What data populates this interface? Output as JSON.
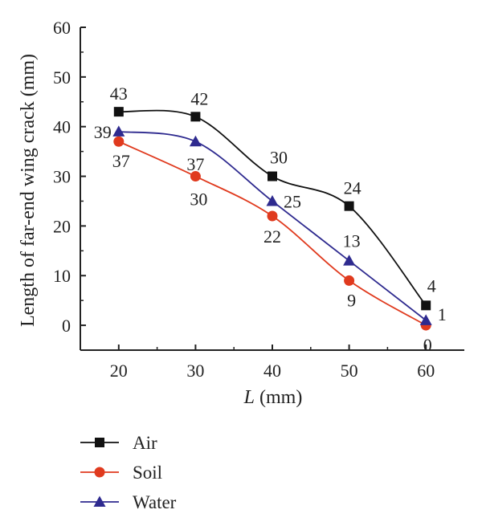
{
  "chart_data": {
    "type": "line",
    "xlabel_italic": "L",
    "xlabel_rest": " (mm)",
    "ylabel": "Length of far-end wing crack (mm)",
    "x": [
      20,
      30,
      40,
      50,
      60
    ],
    "xlim": [
      15,
      65
    ],
    "ylim": [
      -5,
      60
    ],
    "xticks": [
      20,
      30,
      40,
      50,
      60
    ],
    "yticks": [
      0,
      10,
      20,
      30,
      40,
      50,
      60
    ],
    "grid": false,
    "legend_position": "bottom-left",
    "series": [
      {
        "name": "Air",
        "values": [
          43,
          42,
          30,
          24,
          4
        ],
        "labels": [
          "43",
          "42",
          "30",
          "24",
          "4"
        ],
        "color": "#111111",
        "marker": "square"
      },
      {
        "name": "Soil",
        "values": [
          37,
          30,
          22,
          9,
          0
        ],
        "labels": [
          "37",
          "30",
          "22",
          "9",
          "0"
        ],
        "color": "#e03a1e",
        "marker": "circle"
      },
      {
        "name": "Water",
        "values": [
          39,
          37,
          25,
          13,
          1
        ],
        "labels": [
          "39",
          "37",
          "25",
          "13",
          "1"
        ],
        "color": "#2e2a8f",
        "marker": "triangle"
      }
    ]
  }
}
